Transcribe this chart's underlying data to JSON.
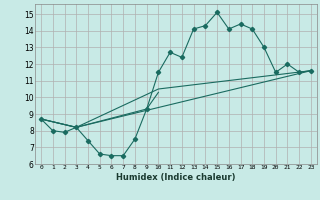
{
  "xlabel": "Humidex (Indice chaleur)",
  "bg_color": "#c8eae6",
  "grid_color": "#b0b0b0",
  "line_color": "#1a6b60",
  "xlim": [
    -0.5,
    23.5
  ],
  "ylim": [
    6,
    15.6
  ],
  "xticks": [
    0,
    1,
    2,
    3,
    4,
    5,
    6,
    7,
    8,
    9,
    10,
    11,
    12,
    13,
    14,
    15,
    16,
    17,
    18,
    19,
    20,
    21,
    22,
    23
  ],
  "yticks": [
    6,
    7,
    8,
    9,
    10,
    11,
    12,
    13,
    14,
    15
  ],
  "series0_x": [
    0,
    1,
    2,
    3,
    4,
    5,
    6,
    7,
    8,
    9,
    10,
    11,
    12,
    13,
    14,
    15,
    16,
    17,
    18,
    19,
    20,
    21,
    22,
    23
  ],
  "series0_y": [
    8.7,
    8.0,
    7.9,
    8.2,
    7.4,
    6.6,
    6.5,
    6.5,
    7.5,
    9.3,
    11.5,
    12.7,
    12.4,
    14.1,
    14.3,
    15.1,
    14.1,
    14.4,
    14.1,
    13.0,
    11.5,
    12.0,
    11.5,
    11.6
  ],
  "series1_x": [
    0,
    3,
    9,
    10
  ],
  "series1_y": [
    8.7,
    8.2,
    9.3,
    10.3
  ],
  "series2_x": [
    0,
    3,
    10,
    23
  ],
  "series2_y": [
    8.7,
    8.2,
    10.5,
    11.6
  ],
  "series3_x": [
    0,
    3,
    23
  ],
  "series3_y": [
    8.7,
    8.2,
    11.6
  ]
}
